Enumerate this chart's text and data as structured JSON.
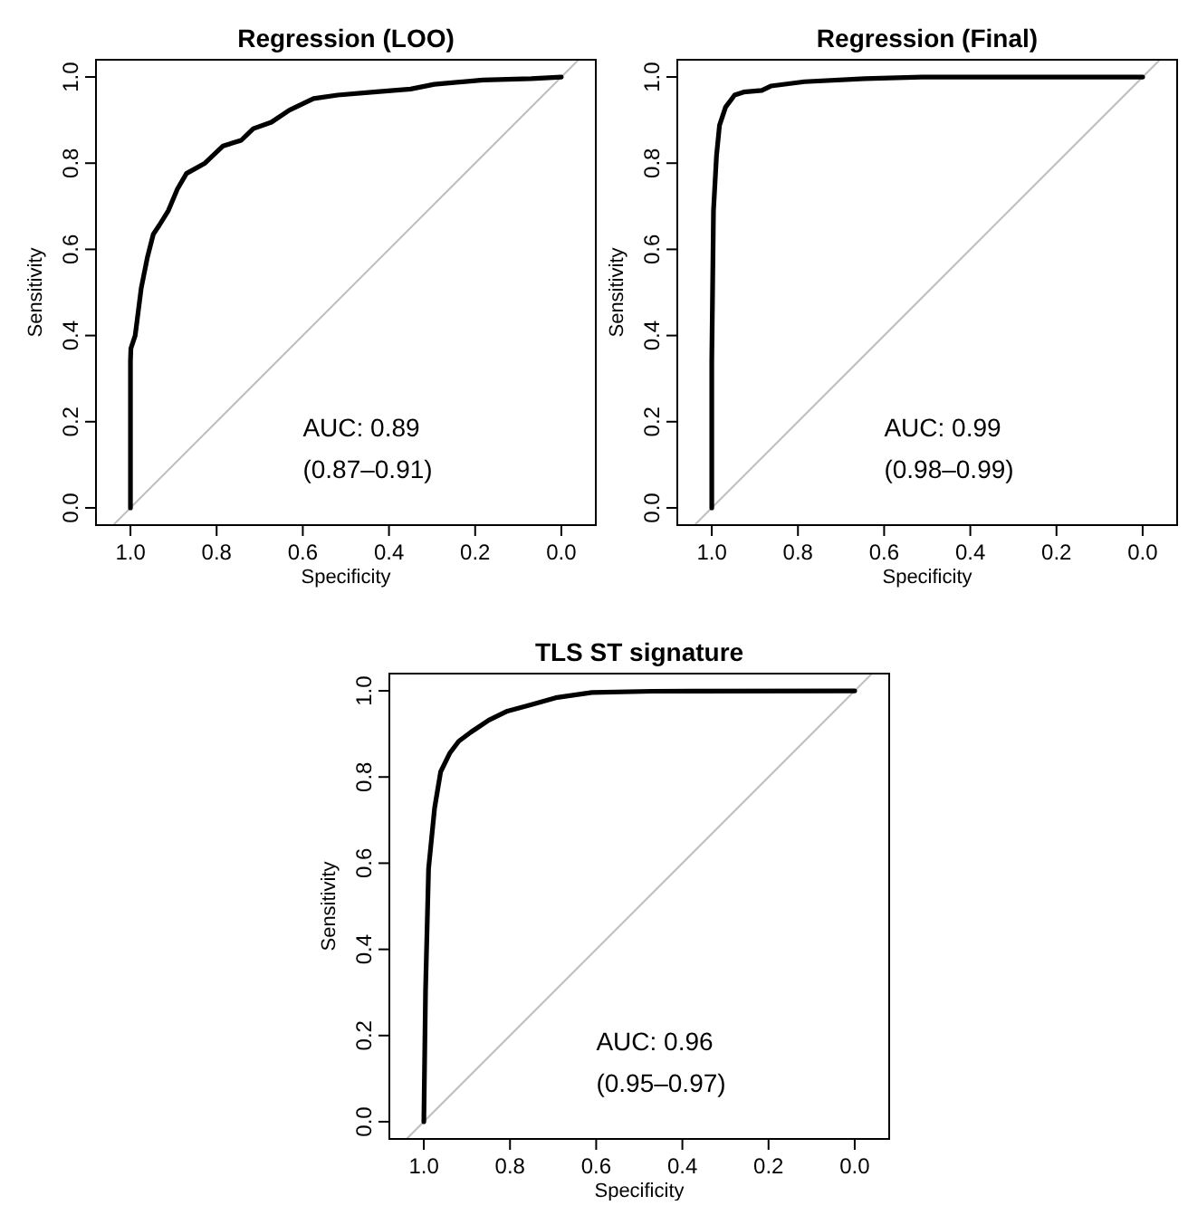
{
  "chart_data": [
    {
      "type": "line",
      "title": "Regression (LOO)",
      "xlabel": "Specificity",
      "ylabel": "Sensitivity",
      "xlim": [
        1.08,
        -0.08
      ],
      "ylim": [
        -0.04,
        1.04
      ],
      "xticks": [
        {
          "value": 1,
          "label": "1.0"
        },
        {
          "value": 0.8,
          "label": "0.8"
        },
        {
          "value": 0.6,
          "label": "0.6"
        },
        {
          "value": 0.4,
          "label": "0.4"
        },
        {
          "value": 0.2,
          "label": "0.2"
        },
        {
          "value": 0,
          "label": "0.0"
        }
      ],
      "yticks": [
        {
          "value": 0,
          "label": "0.0"
        },
        {
          "value": 0.2,
          "label": "0.2"
        },
        {
          "value": 0.4,
          "label": "0.4"
        },
        {
          "value": 0.6,
          "label": "0.6"
        },
        {
          "value": 0.8,
          "label": "0.8"
        },
        {
          "value": 1,
          "label": "1.0"
        }
      ],
      "annotations": [
        "AUC: 0.89",
        "(0.87–0.91)"
      ],
      "series": [
        {
          "color": "#bebebe",
          "x": [
            1.04,
            -0.04
          ],
          "values": [
            -0.04,
            1.04
          ]
        },
        {
          "color": "#000000",
          "x": [
            1,
            1,
            0.999,
            0.989,
            0.975,
            0.961,
            0.947,
            0.933,
            0.912,
            0.891,
            0.87,
            0.827,
            0.785,
            0.743,
            0.715,
            0.673,
            0.631,
            0.575,
            0.519,
            0.435,
            0.35,
            0.295,
            0.182,
            0.07,
            0
          ],
          "values": [
            0,
            0.34,
            0.37,
            0.4,
            0.51,
            0.58,
            0.635,
            0.656,
            0.69,
            0.74,
            0.776,
            0.8,
            0.84,
            0.853,
            0.88,
            0.895,
            0.923,
            0.95,
            0.958,
            0.965,
            0.972,
            0.983,
            0.993,
            0.996,
            1
          ]
        }
      ]
    },
    {
      "type": "line",
      "title": "Regression (Final)",
      "xlabel": "Specificity",
      "ylabel": "Sensitivity",
      "xlim": [
        1.08,
        -0.08
      ],
      "ylim": [
        -0.04,
        1.04
      ],
      "xticks": [
        {
          "value": 1,
          "label": "1.0"
        },
        {
          "value": 0.8,
          "label": "0.8"
        },
        {
          "value": 0.6,
          "label": "0.6"
        },
        {
          "value": 0.4,
          "label": "0.4"
        },
        {
          "value": 0.2,
          "label": "0.2"
        },
        {
          "value": 0,
          "label": "0.0"
        }
      ],
      "yticks": [
        {
          "value": 0,
          "label": "0.0"
        },
        {
          "value": 0.2,
          "label": "0.2"
        },
        {
          "value": 0.4,
          "label": "0.4"
        },
        {
          "value": 0.6,
          "label": "0.6"
        },
        {
          "value": 0.8,
          "label": "0.8"
        },
        {
          "value": 1,
          "label": "1.0"
        }
      ],
      "annotations": [
        "AUC: 0.99",
        "(0.98–0.99)"
      ],
      "series": [
        {
          "color": "#bebebe",
          "x": [
            1.04,
            -0.04
          ],
          "values": [
            -0.04,
            1.04
          ]
        },
        {
          "color": "#000000",
          "x": [
            1,
            1,
            0.996,
            0.989,
            0.982,
            0.968,
            0.947,
            0.926,
            0.884,
            0.863,
            0.785,
            0.645,
            0.505,
            0
          ],
          "values": [
            0,
            0.34,
            0.69,
            0.818,
            0.888,
            0.93,
            0.958,
            0.965,
            0.969,
            0.979,
            0.989,
            0.996,
            1,
            1
          ]
        }
      ]
    },
    {
      "type": "line",
      "title": "TLS ST signature",
      "xlabel": "Specificity",
      "ylabel": "Sensitivity",
      "xlim": [
        1.08,
        -0.08
      ],
      "ylim": [
        -0.04,
        1.04
      ],
      "xticks": [
        {
          "value": 1,
          "label": "1.0"
        },
        {
          "value": 0.8,
          "label": "0.8"
        },
        {
          "value": 0.6,
          "label": "0.6"
        },
        {
          "value": 0.4,
          "label": "0.4"
        },
        {
          "value": 0.2,
          "label": "0.2"
        },
        {
          "value": 0,
          "label": "0.0"
        }
      ],
      "yticks": [
        {
          "value": 0,
          "label": "0.0"
        },
        {
          "value": 0.2,
          "label": "0.2"
        },
        {
          "value": 0.4,
          "label": "0.4"
        },
        {
          "value": 0.6,
          "label": "0.6"
        },
        {
          "value": 0.8,
          "label": "0.8"
        },
        {
          "value": 1,
          "label": "1.0"
        }
      ],
      "annotations": [
        "AUC: 0.96",
        "(0.95–0.97)"
      ],
      "series": [
        {
          "color": "#bebebe",
          "x": [
            1.04,
            -0.04
          ],
          "values": [
            -0.04,
            1.04
          ]
        },
        {
          "color": "#000000",
          "x": [
            1,
            0.996,
            0.989,
            0.975,
            0.961,
            0.94,
            0.919,
            0.891,
            0.849,
            0.806,
            0.75,
            0.694,
            0.61,
            0.47,
            0
          ],
          "values": [
            0,
            0.305,
            0.587,
            0.728,
            0.812,
            0.855,
            0.883,
            0.904,
            0.932,
            0.953,
            0.968,
            0.984,
            0.996,
            0.999,
            1
          ]
        }
      ]
    }
  ]
}
